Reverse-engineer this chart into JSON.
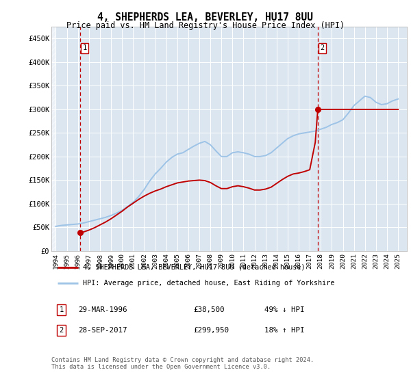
{
  "title": "4, SHEPHERDS LEA, BEVERLEY, HU17 8UU",
  "subtitle": "Price paid vs. HM Land Registry's House Price Index (HPI)",
  "property_label": "4, SHEPHERDS LEA, BEVERLEY, HU17 8UU (detached house)",
  "hpi_label": "HPI: Average price, detached house, East Riding of Yorkshire",
  "footnote": "Contains HM Land Registry data © Crown copyright and database right 2024.\nThis data is licensed under the Open Government Licence v3.0.",
  "ylim": [
    0,
    475000
  ],
  "yticks": [
    0,
    50000,
    100000,
    150000,
    200000,
    250000,
    300000,
    350000,
    400000,
    450000
  ],
  "ytick_labels": [
    "£0",
    "£50K",
    "£100K",
    "£150K",
    "£200K",
    "£250K",
    "£300K",
    "£350K",
    "£400K",
    "£450K"
  ],
  "xlim_start": 1993.6,
  "xlim_end": 2025.8,
  "sale1_year": 1996.23,
  "sale2_year": 2017.73,
  "sale1_price": 38500,
  "sale2_price": 299950,
  "red_line_color": "#c00000",
  "blue_line_color": "#9dc3e6",
  "grid_color": "#ffffff",
  "plot_bg": "#dce6f1",
  "hatch_color": "#b0b8c8",
  "hpi_data": [
    [
      1994.0,
      52000
    ],
    [
      1994.5,
      54000
    ],
    [
      1995.0,
      55000
    ],
    [
      1995.5,
      56000
    ],
    [
      1996.0,
      57000
    ],
    [
      1996.5,
      59000
    ],
    [
      1997.0,
      62000
    ],
    [
      1997.5,
      65000
    ],
    [
      1998.0,
      68000
    ],
    [
      1998.5,
      71000
    ],
    [
      1999.0,
      75000
    ],
    [
      1999.5,
      80000
    ],
    [
      2000.0,
      86000
    ],
    [
      2000.5,
      94000
    ],
    [
      2001.0,
      103000
    ],
    [
      2001.5,
      115000
    ],
    [
      2002.0,
      130000
    ],
    [
      2002.5,
      148000
    ],
    [
      2003.0,
      163000
    ],
    [
      2003.5,
      175000
    ],
    [
      2004.0,
      188000
    ],
    [
      2004.5,
      198000
    ],
    [
      2005.0,
      205000
    ],
    [
      2005.5,
      208000
    ],
    [
      2006.0,
      215000
    ],
    [
      2006.5,
      222000
    ],
    [
      2007.0,
      228000
    ],
    [
      2007.5,
      232000
    ],
    [
      2008.0,
      225000
    ],
    [
      2008.5,
      212000
    ],
    [
      2009.0,
      200000
    ],
    [
      2009.5,
      200000
    ],
    [
      2010.0,
      208000
    ],
    [
      2010.5,
      210000
    ],
    [
      2011.0,
      208000
    ],
    [
      2011.5,
      205000
    ],
    [
      2012.0,
      200000
    ],
    [
      2012.5,
      200000
    ],
    [
      2013.0,
      202000
    ],
    [
      2013.5,
      208000
    ],
    [
      2014.0,
      218000
    ],
    [
      2014.5,
      228000
    ],
    [
      2015.0,
      238000
    ],
    [
      2015.5,
      244000
    ],
    [
      2016.0,
      248000
    ],
    [
      2016.5,
      250000
    ],
    [
      2017.0,
      252000
    ],
    [
      2017.5,
      254000
    ],
    [
      2018.0,
      258000
    ],
    [
      2018.5,
      262000
    ],
    [
      2019.0,
      268000
    ],
    [
      2019.5,
      272000
    ],
    [
      2020.0,
      278000
    ],
    [
      2020.5,
      292000
    ],
    [
      2021.0,
      308000
    ],
    [
      2021.5,
      318000
    ],
    [
      2022.0,
      328000
    ],
    [
      2022.5,
      325000
    ],
    [
      2023.0,
      315000
    ],
    [
      2023.5,
      310000
    ],
    [
      2024.0,
      312000
    ],
    [
      2024.5,
      318000
    ],
    [
      2025.0,
      322000
    ]
  ],
  "property_data": [
    [
      1996.23,
      38500
    ],
    [
      1996.5,
      40000
    ],
    [
      1997.0,
      44000
    ],
    [
      1997.5,
      49000
    ],
    [
      1998.0,
      55000
    ],
    [
      1998.5,
      61000
    ],
    [
      1999.0,
      68000
    ],
    [
      1999.5,
      76000
    ],
    [
      2000.0,
      84000
    ],
    [
      2000.5,
      93000
    ],
    [
      2001.0,
      101000
    ],
    [
      2001.5,
      109000
    ],
    [
      2002.0,
      116000
    ],
    [
      2002.5,
      122000
    ],
    [
      2003.0,
      127000
    ],
    [
      2003.5,
      131000
    ],
    [
      2004.0,
      136000
    ],
    [
      2004.5,
      140000
    ],
    [
      2005.0,
      144000
    ],
    [
      2005.5,
      146000
    ],
    [
      2006.0,
      148000
    ],
    [
      2006.5,
      149000
    ],
    [
      2007.0,
      150000
    ],
    [
      2007.5,
      149000
    ],
    [
      2008.0,
      145000
    ],
    [
      2008.5,
      138000
    ],
    [
      2009.0,
      132000
    ],
    [
      2009.5,
      132000
    ],
    [
      2010.0,
      136000
    ],
    [
      2010.5,
      138000
    ],
    [
      2011.0,
      136000
    ],
    [
      2011.5,
      133000
    ],
    [
      2012.0,
      129000
    ],
    [
      2012.5,
      129000
    ],
    [
      2013.0,
      131000
    ],
    [
      2013.5,
      135000
    ],
    [
      2014.0,
      143000
    ],
    [
      2014.5,
      151000
    ],
    [
      2015.0,
      158000
    ],
    [
      2015.5,
      163000
    ],
    [
      2016.0,
      165000
    ],
    [
      2016.5,
      168000
    ],
    [
      2017.0,
      172000
    ],
    [
      2017.5,
      230000
    ],
    [
      2017.73,
      299950
    ],
    [
      2018.0,
      299950
    ],
    [
      2018.5,
      299950
    ],
    [
      2019.0,
      299950
    ],
    [
      2019.5,
      299950
    ],
    [
      2020.0,
      299950
    ],
    [
      2020.5,
      299950
    ],
    [
      2021.0,
      299950
    ],
    [
      2021.5,
      299950
    ],
    [
      2022.0,
      299950
    ],
    [
      2022.5,
      299950
    ],
    [
      2023.0,
      299950
    ],
    [
      2023.5,
      299950
    ],
    [
      2024.0,
      299950
    ],
    [
      2024.5,
      299950
    ],
    [
      2025.0,
      299950
    ]
  ],
  "xtick_years": [
    1994,
    1995,
    1996,
    1997,
    1998,
    1999,
    2000,
    2001,
    2002,
    2003,
    2004,
    2005,
    2006,
    2007,
    2008,
    2009,
    2010,
    2011,
    2012,
    2013,
    2014,
    2015,
    2016,
    2017,
    2018,
    2019,
    2020,
    2021,
    2022,
    2023,
    2024,
    2025
  ]
}
